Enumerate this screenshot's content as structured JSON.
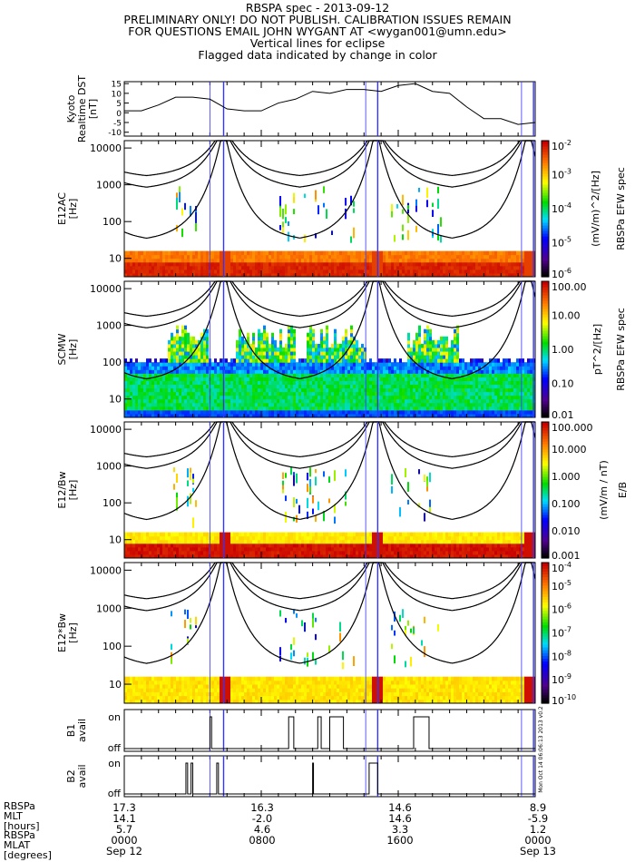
{
  "titles": [
    "RBSPA spec - 2013-09-12",
    "PRELIMINARY ONLY! DO NOT PUBLISH. CALIBRATION ISSUES REMAIN",
    "FOR QUESTIONS EMAIL JOHN WYGANT AT <wygan001@umn.edu>",
    "Vertical lines for eclipse",
    "Flagged data indicated by change in color"
  ],
  "colors": {
    "eclipse_line": "#3333ff",
    "curve": "#000000"
  },
  "chart_data": [
    {
      "type": "line",
      "panel": "kyoto",
      "ylabel": [
        "Kyoto",
        "Realtime DST",
        "[nT]"
      ],
      "ylim": [
        -12,
        16
      ],
      "yticks": [
        "15",
        "10",
        "5",
        "0",
        "-5",
        "-10"
      ],
      "ytick_values": [
        15,
        10,
        5,
        0,
        -5,
        -10
      ],
      "x_hours": [
        0,
        1,
        2,
        3,
        4,
        5,
        6,
        7,
        8,
        9,
        10,
        11,
        12,
        13,
        14,
        15,
        16,
        17,
        18,
        19,
        20,
        21,
        22,
        23,
        24
      ],
      "values": [
        1,
        1,
        4,
        8,
        8,
        7,
        2,
        1,
        1,
        5,
        7,
        11,
        10,
        12,
        12,
        11,
        14,
        15,
        11,
        10,
        3,
        -3,
        -3,
        -6,
        -5
      ]
    },
    {
      "type": "heatmap",
      "panel": "e12ac",
      "ylabel": [
        "E12AC",
        "[Hz]"
      ],
      "yscale": "log",
      "yticks": [
        "10000",
        "1000",
        "100",
        "10"
      ],
      "colorbar": {
        "ticks": [
          "10^-2",
          "10^-3",
          "10^-4",
          "10^-5",
          "10^-6"
        ],
        "label": "(mV/m)^2/[Hz]",
        "title": "RBSPa EFW spec"
      }
    },
    {
      "type": "heatmap",
      "panel": "scmw",
      "ylabel": [
        "SCMW",
        "[Hz]"
      ],
      "yscale": "log",
      "yticks": [
        "10000",
        "1000",
        "100",
        "10"
      ],
      "colorbar": {
        "ticks": [
          "100.00",
          "10.00",
          "1.00",
          "0.10",
          "0.01"
        ],
        "label": "pT^2/[Hz]",
        "title": "RBSPa EFW spec"
      }
    },
    {
      "type": "heatmap",
      "panel": "e12_over_bw",
      "ylabel": [
        "E12/Bw",
        "[Hz]"
      ],
      "yscale": "log",
      "yticks": [
        "10000",
        "1000",
        "100",
        "10"
      ],
      "colorbar": {
        "ticks": [
          "100.000",
          "10.000",
          "1.000",
          "0.100",
          "0.010",
          "0.001"
        ],
        "label": "(mV/m / nT)",
        "title": "E/B"
      }
    },
    {
      "type": "heatmap",
      "panel": "e12_times_bw",
      "ylabel": [
        "E12*Bw",
        "[Hz]"
      ],
      "yscale": "log",
      "yticks": [
        "10000",
        "1000",
        "100",
        "10"
      ],
      "colorbar": {
        "ticks": [
          "10^-4",
          "10^-5",
          "10^-6",
          "10^-7",
          "10^-8",
          "10^-9",
          "10^-10"
        ]
      }
    },
    {
      "type": "line",
      "panel": "b1",
      "ylabel": [
        "B1",
        "avail"
      ],
      "ylevels": [
        "on",
        "off"
      ],
      "on_intervals_hours": [
        [
          5.0,
          5.1
        ],
        [
          9.6,
          9.9
        ],
        [
          11.3,
          11.5
        ],
        [
          12.0,
          12.8
        ],
        [
          16.9,
          17.8
        ]
      ]
    },
    {
      "type": "line",
      "panel": "b2",
      "ylabel": [
        "B2",
        "avail"
      ],
      "ylevels": [
        "on",
        "off"
      ],
      "on_intervals_hours": [
        [
          3.6,
          3.7
        ],
        [
          3.9,
          4.0
        ],
        [
          5.4,
          5.5
        ],
        [
          11.0,
          11.05
        ],
        [
          14.3,
          14.8
        ]
      ]
    }
  ],
  "eclipse_hours": [
    5.0,
    5.8,
    14.1,
    14.8,
    23.2,
    23.9
  ],
  "timestamp_side": "Mon Oct 14 06:06:13 2013 v0.2",
  "footer": {
    "row_labels": [
      "RBSPa",
      "MLT",
      "[hours]",
      "RBSPa",
      "MLAT",
      "[degrees]"
    ],
    "columns": [
      {
        "lines": [
          "17.3",
          "14.1",
          "5.7",
          "0000",
          "Sep 12"
        ]
      },
      {
        "lines": [
          "16.3",
          "-2.0",
          "4.6",
          "0800",
          ""
        ]
      },
      {
        "lines": [
          "14.6",
          "14.6",
          "3.3",
          "1600",
          ""
        ]
      },
      {
        "lines": [
          "8.9",
          "-5.9",
          "1.2",
          "0000",
          "Sep 13"
        ]
      }
    ]
  }
}
